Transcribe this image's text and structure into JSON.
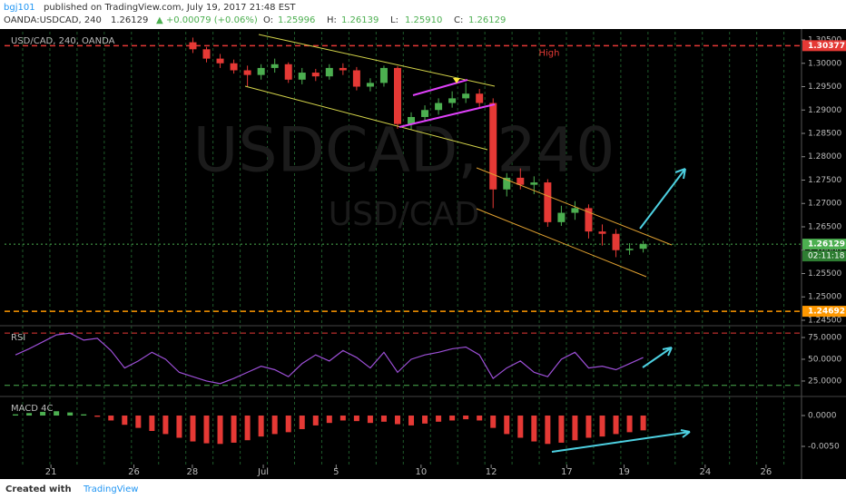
{
  "header": {
    "author": "bgj101",
    "published": "published on TradingView.com, July 19, 2017 21:48 EST",
    "symbol": "OANDA:USDCAD, 240",
    "last": "1.26129",
    "change": "▲ +0.00079 (+0.06%)",
    "ohlc": [
      {
        "label": "O:",
        "value": "1.25996"
      },
      {
        "label": "H:",
        "value": "1.26139"
      },
      {
        "label": "L:",
        "value": "1.25910"
      },
      {
        "label": "C:",
        "value": "1.26129"
      }
    ]
  },
  "chart_data": [
    {
      "type": "candlestick",
      "title": "USD/CAD, 240, OANDA",
      "watermark": "USDCAD, 240",
      "watermark_sub": "USD/CAD",
      "x": [
        5.2,
        5.7,
        6.2,
        6.7,
        7.2,
        7.7,
        8.2,
        8.7,
        9.2,
        9.7,
        10.2,
        10.7,
        11.2,
        11.7,
        12.2,
        12.7,
        13.2,
        13.7,
        14.2,
        14.7,
        15.2,
        15.7,
        16.2,
        16.7,
        17.2,
        17.7,
        18.2,
        18.7,
        19.2,
        19.7,
        20.2,
        20.7,
        21.2,
        21.7
      ],
      "open": [
        1.3045,
        1.303,
        1.301,
        1.3,
        1.2985,
        1.2975,
        1.299,
        1.2998,
        1.2965,
        1.298,
        1.2972,
        1.299,
        1.2985,
        1.295,
        1.2958,
        1.299,
        1.287,
        1.2885,
        1.29,
        1.2915,
        1.2925,
        1.2935,
        1.2915,
        1.273,
        1.2755,
        1.274,
        1.2745,
        1.266,
        1.268,
        1.269,
        1.264,
        1.2635,
        1.26,
        1.2603
      ],
      "high": [
        1.3055,
        1.3035,
        1.302,
        1.3008,
        1.2995,
        1.2998,
        1.301,
        1.3002,
        1.299,
        1.2988,
        1.2998,
        1.3,
        1.2992,
        1.2968,
        1.2995,
        1.2994,
        1.2895,
        1.291,
        1.2925,
        1.294,
        1.2958,
        1.2945,
        1.2925,
        1.2765,
        1.2775,
        1.2758,
        1.2752,
        1.2695,
        1.2705,
        1.2698,
        1.2655,
        1.2645,
        1.2615,
        1.262
      ],
      "low": [
        1.3022,
        1.3002,
        1.299,
        1.2978,
        1.295,
        1.2965,
        1.298,
        1.2958,
        1.2955,
        1.2962,
        1.2965,
        1.2975,
        1.2942,
        1.294,
        1.295,
        1.286,
        1.2858,
        1.2875,
        1.289,
        1.2905,
        1.2915,
        1.2905,
        1.269,
        1.2715,
        1.273,
        1.272,
        1.265,
        1.2652,
        1.2665,
        1.2625,
        1.261,
        1.2585,
        1.259,
        1.2595
      ],
      "close": [
        1.303,
        1.301,
        1.3,
        1.2985,
        1.2975,
        1.299,
        1.2998,
        1.2965,
        1.298,
        1.2972,
        1.299,
        1.2985,
        1.295,
        1.2958,
        1.299,
        1.287,
        1.2885,
        1.29,
        1.2915,
        1.2925,
        1.2935,
        1.2915,
        1.273,
        1.2755,
        1.274,
        1.2745,
        1.266,
        1.268,
        1.269,
        1.264,
        1.2635,
        1.26,
        1.2603,
        1.2613
      ],
      "up_color": "#4caf50",
      "down_color": "#e53935",
      "xlim": [
        -1.7,
        27.5
      ],
      "xticks": [
        {
          "value": 0,
          "label": "21"
        },
        {
          "value": 3.04,
          "label": "26"
        },
        {
          "value": 5.18,
          "label": "28"
        },
        {
          "value": 7.78,
          "label": "Jul"
        },
        {
          "value": 10.45,
          "label": "5"
        },
        {
          "value": 13.56,
          "label": "10"
        },
        {
          "value": 16.13,
          "label": "12"
        },
        {
          "value": 18.9,
          "label": "17"
        },
        {
          "value": 21.0,
          "label": "19"
        },
        {
          "value": 23.97,
          "label": "24"
        },
        {
          "value": 26.2,
          "label": "26"
        }
      ],
      "ylim": [
        1.24422,
        1.30675
      ],
      "yticks": [
        {
          "value": 1.305,
          "label": "1.30500"
        },
        {
          "value": 1.3,
          "label": "1.30000"
        },
        {
          "value": 1.295,
          "label": "1.29500"
        },
        {
          "value": 1.29,
          "label": "1.29000"
        },
        {
          "value": 1.285,
          "label": "1.28500"
        },
        {
          "value": 1.28,
          "label": "1.28000"
        },
        {
          "value": 1.275,
          "label": "1.27500"
        },
        {
          "value": 1.27,
          "label": "1.27000"
        },
        {
          "value": 1.265,
          "label": "1.26500"
        },
        {
          "value": 1.26,
          "label": "1.26000"
        },
        {
          "value": 1.255,
          "label": "1.25500"
        },
        {
          "value": 1.25,
          "label": "1.25000"
        },
        {
          "value": 1.245,
          "label": "1.24500"
        }
      ],
      "hlines": [
        {
          "value": 1.30377,
          "label": "1.30377",
          "color": "#e53935"
        },
        {
          "value": 1.26129,
          "label": "1.26129",
          "color": "#4caf50"
        },
        {
          "value": 1.24692,
          "label": "1.24692",
          "color": "#ff9800"
        }
      ],
      "annotation": "High",
      "countdown": "02:11:18"
    },
    {
      "type": "line",
      "title": "RSI",
      "color": "#9c4fd6",
      "x": [
        -1.3,
        -0.8,
        -0.3,
        0.2,
        0.7,
        1.2,
        1.7,
        2.2,
        2.7,
        3.2,
        3.7,
        4.2,
        4.7,
        5.2,
        5.7,
        6.2,
        6.7,
        7.2,
        7.7,
        8.2,
        8.7,
        9.2,
        9.7,
        10.2,
        10.7,
        11.2,
        11.7,
        12.2,
        12.7,
        13.2,
        13.7,
        14.2,
        14.7,
        15.2,
        15.7,
        16.2,
        16.7,
        17.2,
        17.7,
        18.2,
        18.7,
        19.2,
        19.7,
        20.2,
        20.7,
        21.2,
        21.7
      ],
      "values": [
        55,
        62,
        70,
        78,
        80,
        72,
        74,
        60,
        40,
        48,
        58,
        50,
        35,
        30,
        25,
        22,
        28,
        35,
        42,
        38,
        30,
        45,
        55,
        48,
        60,
        52,
        40,
        58,
        35,
        50,
        55,
        58,
        62,
        64,
        55,
        28,
        40,
        48,
        35,
        30,
        50,
        58,
        40,
        42,
        38,
        45,
        52
      ],
      "ylim": [
        8.3,
        85.4
      ],
      "yticks": [
        {
          "value": 75,
          "label": "75.0000"
        },
        {
          "value": 50,
          "label": "50.0000"
        },
        {
          "value": 25,
          "label": "25.0000"
        }
      ],
      "hlines": [
        {
          "value": 80,
          "color": "#e53935"
        },
        {
          "value": 20,
          "color": "#4caf50"
        }
      ]
    },
    {
      "type": "histogram",
      "title": "MACD 4C",
      "up_color": "#4caf50",
      "down_color": "#e53935",
      "x": [
        -1.3,
        -0.8,
        -0.3,
        0.2,
        0.7,
        1.2,
        1.7,
        2.2,
        2.7,
        3.2,
        3.7,
        4.2,
        4.7,
        5.2,
        5.7,
        6.2,
        6.7,
        7.2,
        7.7,
        8.2,
        8.7,
        9.2,
        9.7,
        10.2,
        10.7,
        11.2,
        11.7,
        12.2,
        12.7,
        13.2,
        13.7,
        14.2,
        14.7,
        15.2,
        15.7,
        16.2,
        16.7,
        17.2,
        17.7,
        18.2,
        18.7,
        19.2,
        19.7,
        20.2,
        20.7,
        21.2,
        21.7
      ],
      "values": [
        0.0002,
        0.0004,
        0.0006,
        0.0007,
        0.0005,
        0.0002,
        -0.0002,
        -0.0008,
        -0.0015,
        -0.002,
        -0.0025,
        -0.003,
        -0.0036,
        -0.0042,
        -0.0045,
        -0.0046,
        -0.0044,
        -0.004,
        -0.0034,
        -0.003,
        -0.0027,
        -0.0022,
        -0.0016,
        -0.0012,
        -0.0008,
        -0.0009,
        -0.0012,
        -0.001,
        -0.0014,
        -0.0016,
        -0.0013,
        -0.001,
        -0.0008,
        -0.0006,
        -0.0008,
        -0.002,
        -0.003,
        -0.0036,
        -0.0042,
        -0.0046,
        -0.0044,
        -0.004,
        -0.0036,
        -0.0034,
        -0.003,
        -0.0027,
        -0.0024
      ],
      "ylim": [
        -0.00794,
        0.00265
      ],
      "yticks": [
        {
          "value": 0,
          "label": "0.0000"
        },
        {
          "value": -0.005,
          "label": "-0.0050"
        }
      ]
    }
  ],
  "footer": {
    "created": "Created with",
    "brand": "TradingView"
  }
}
